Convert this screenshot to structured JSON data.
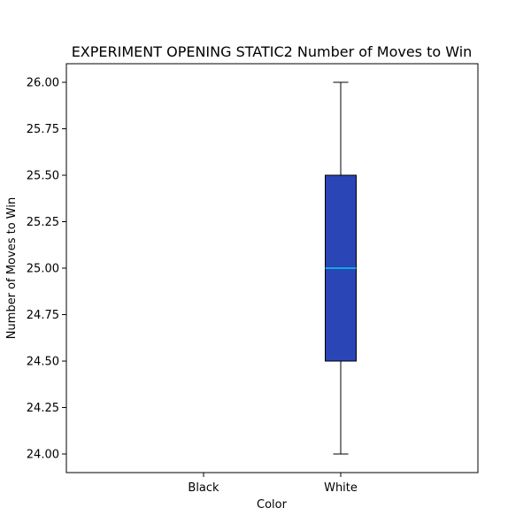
{
  "chart_data": {
    "type": "box",
    "title": "EXPERIMENT OPENING STATIC2 Number of Moves to Win",
    "xlabel": "Color",
    "ylabel": "Number of Moves to Win",
    "categories": [
      "Black",
      "White"
    ],
    "boxes": [
      {
        "category": "Black",
        "min": null,
        "q1": null,
        "median": null,
        "q3": null,
        "max": null
      },
      {
        "category": "White",
        "min": 24.0,
        "q1": 24.5,
        "median": 25.0,
        "q3": 25.5,
        "max": 26.0
      }
    ],
    "ylim": [
      23.9,
      26.1
    ],
    "yticks": [
      24.0,
      24.25,
      24.5,
      24.75,
      25.0,
      25.25,
      25.5,
      25.75,
      26.0
    ],
    "ytick_labels": [
      "24.00",
      "24.25",
      "24.50",
      "24.75",
      "25.00",
      "25.25",
      "25.50",
      "25.75",
      "26.00"
    ],
    "grid": false,
    "colors": {
      "box_fill": "#2a45b5",
      "median": "#00e5ff",
      "edge": "#000000"
    }
  }
}
